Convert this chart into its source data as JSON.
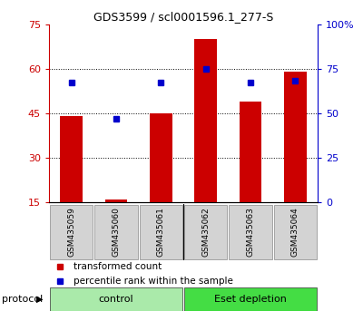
{
  "title": "GDS3599 / scl0001596.1_277-S",
  "samples": [
    "GSM435059",
    "GSM435060",
    "GSM435061",
    "GSM435062",
    "GSM435063",
    "GSM435064"
  ],
  "transformed_count": [
    44.0,
    16.0,
    45.0,
    70.0,
    49.0,
    59.0
  ],
  "percentile_rank": [
    67.0,
    47.0,
    67.0,
    75.0,
    67.0,
    68.0
  ],
  "left_ylim": [
    15,
    75
  ],
  "left_yticks": [
    15,
    30,
    45,
    60,
    75
  ],
  "right_ylim": [
    0,
    100
  ],
  "right_yticks": [
    0,
    25,
    50,
    75,
    100
  ],
  "right_yticklabels": [
    "0",
    "25",
    "50",
    "75",
    "100%"
  ],
  "bar_color": "#cc0000",
  "dot_color": "#0000cc",
  "group_labels": [
    "control",
    "Eset depletion"
  ],
  "group_colors": [
    "#aaeaaa",
    "#44dd44"
  ],
  "protocol_label": "protocol",
  "legend_items": [
    "transformed count",
    "percentile rank within the sample"
  ],
  "legend_colors": [
    "#cc0000",
    "#0000cc"
  ],
  "tick_color_left": "#cc0000",
  "tick_color_right": "#0000cc",
  "bar_width": 0.5,
  "n_control": 3,
  "n_eset": 3
}
